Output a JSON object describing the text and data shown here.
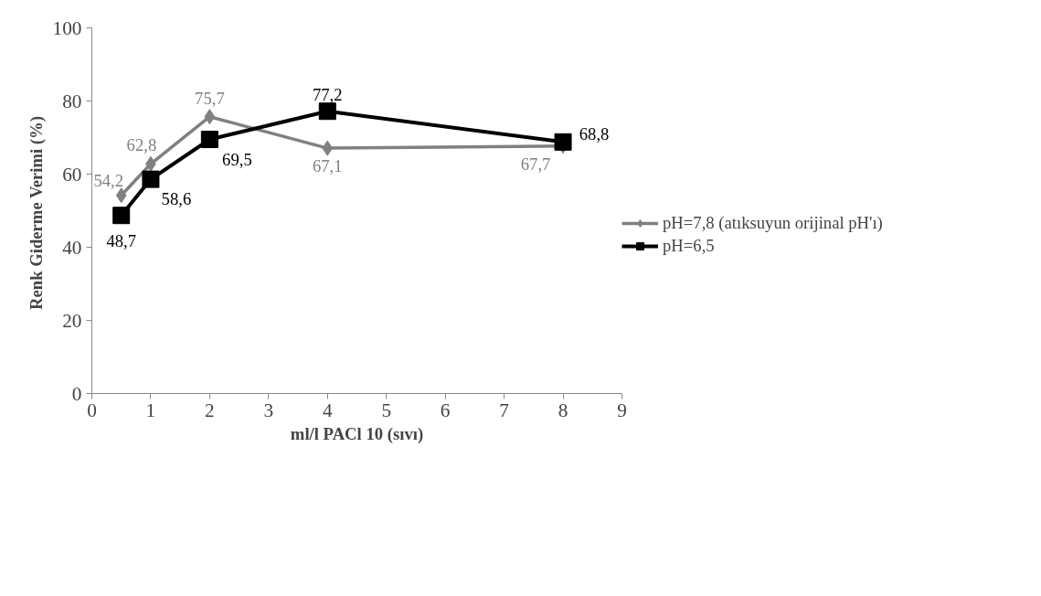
{
  "chart_data": {
    "type": "line",
    "xlabel": "ml/l PACl 10 (sıvı)",
    "ylabel": "Renk Giderme Verimi  (%)",
    "x": [
      0.5,
      1,
      2,
      4,
      8
    ],
    "series": [
      {
        "name": "pH=7,8 (atıksuyun orijinal pH'ı)",
        "color": "#808080",
        "marker": "diamond",
        "values": [
          54.2,
          62.8,
          75.7,
          67.1,
          67.7
        ],
        "value_labels": [
          "54,2",
          "62,8",
          "75,7",
          "67,1",
          "67,7"
        ]
      },
      {
        "name": "pH=6,5",
        "color": "#000000",
        "marker": "square",
        "values": [
          48.7,
          58.6,
          69.5,
          77.2,
          68.8
        ],
        "value_labels": [
          "48,7",
          "58,6",
          "69,5",
          "77,2",
          "68,8"
        ]
      }
    ],
    "xlim": [
      0,
      9
    ],
    "ylim": [
      0,
      100
    ],
    "xticks": [
      0,
      1,
      2,
      3,
      4,
      5,
      6,
      7,
      8,
      9
    ],
    "yticks": [
      0,
      20,
      40,
      60,
      80,
      100
    ],
    "grid": false,
    "legend": "right",
    "line_style": "solid"
  }
}
